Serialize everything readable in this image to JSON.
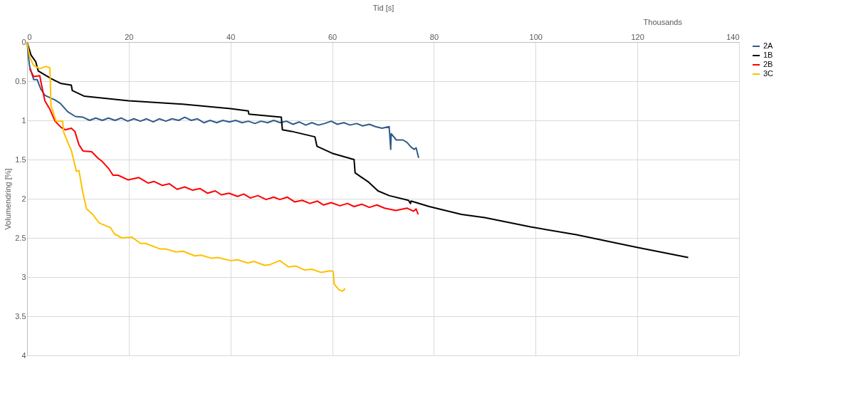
{
  "chart_data": {
    "type": "line",
    "xlabel": "Tid [s]",
    "ylabel": "Volumendring [%]",
    "annotations": [
      "Thousands"
    ],
    "xlim": [
      0,
      140
    ],
    "xticks": [
      0,
      20,
      40,
      60,
      80,
      100,
      120,
      140
    ],
    "ylim": [
      4,
      0
    ],
    "yticks": [
      0,
      0.5,
      1,
      1.5,
      2,
      2.5,
      3,
      3.5,
      4
    ],
    "grid": true,
    "legend": "right",
    "marker": "none",
    "line_style": "solid",
    "series": [
      {
        "name": "2A",
        "color": "#2f5b8a",
        "x": [
          0,
          0.3,
          0.5,
          1.3,
          2,
          2.7,
          3.5,
          5.5,
          6.5,
          8,
          9.5,
          11,
          12.3,
          13.5,
          14.8,
          16,
          17.3,
          18.5,
          19.8,
          21,
          22.3,
          23.5,
          24.8,
          26,
          27.3,
          28.5,
          29.8,
          31,
          32.3,
          33.5,
          34.8,
          36,
          37.3,
          38.5,
          39.8,
          41,
          42.3,
          43.5,
          44.8,
          46,
          47.3,
          48.5,
          49.8,
          51,
          52.3,
          53.5,
          54.8,
          56,
          57.3,
          58.5,
          59.8,
          61,
          62.3,
          63.5,
          64.8,
          66,
          67.3,
          68.5,
          69.8,
          71.2,
          71.5,
          71.6,
          72.6,
          73.9,
          74.7,
          75.5,
          76.1,
          76.5,
          77
        ],
        "values": [
          0,
          0.2,
          0.31,
          0.48,
          0.48,
          0.6,
          0.68,
          0.74,
          0.78,
          0.89,
          0.95,
          0.96,
          1.0,
          0.97,
          1.0,
          0.97,
          1.0,
          0.97,
          1.01,
          0.98,
          1.01,
          0.98,
          1.02,
          0.98,
          1.01,
          0.98,
          1.0,
          0.96,
          1.0,
          0.98,
          1.03,
          1.0,
          1.03,
          1.0,
          1.02,
          1.0,
          1.03,
          1.01,
          1.04,
          1.01,
          1.03,
          1.0,
          1.03,
          1.01,
          1.05,
          1.02,
          1.06,
          1.03,
          1.06,
          1.04,
          1.01,
          1.05,
          1.03,
          1.06,
          1.04,
          1.07,
          1.05,
          1.08,
          1.1,
          1.08,
          1.37,
          1.17,
          1.25,
          1.25,
          1.28,
          1.34,
          1.37,
          1.35,
          1.48
        ]
      },
      {
        "name": "1B",
        "color": "#000000",
        "x": [
          0,
          0.8,
          1.7,
          2.2,
          4.8,
          6.7,
          8.7,
          8.9,
          11.2,
          20,
          30,
          40,
          43.5,
          43.6,
          50,
          50.2,
          52,
          56.6,
          57,
          60,
          64.3,
          64.5,
          67.2,
          69,
          71.2,
          75,
          75.4,
          75.5,
          79.1,
          85.4,
          90,
          99,
          108,
          119.9,
          130
        ],
        "values": [
          0,
          0.17,
          0.25,
          0.37,
          0.47,
          0.53,
          0.55,
          0.62,
          0.69,
          0.75,
          0.79,
          0.85,
          0.88,
          0.92,
          0.96,
          1.12,
          1.14,
          1.21,
          1.33,
          1.42,
          1.5,
          1.67,
          1.79,
          1.9,
          1.96,
          2.02,
          2.06,
          2.03,
          2.1,
          2.2,
          2.24,
          2.36,
          2.46,
          2.62,
          2.75
        ]
      },
      {
        "name": "2B",
        "color": "#ff0000",
        "x": [
          0.5,
          1.3,
          2.5,
          2.7,
          3.5,
          4.5,
          5.5,
          6.7,
          7.5,
          8.7,
          9.4,
          10.2,
          11,
          12.7,
          13.9,
          14.7,
          16.1,
          16.9,
          17.9,
          19.9,
          22,
          23.8,
          25,
          26.6,
          28,
          29.5,
          31,
          32.5,
          34,
          35.5,
          37,
          38.2,
          39.7,
          41.4,
          42.6,
          43.9,
          45.4,
          47,
          48.5,
          49.7,
          51.2,
          52.6,
          54.1,
          55.6,
          57.1,
          58.3,
          59.8,
          61.5,
          63,
          64.3,
          65.8,
          67.3,
          68.8,
          70.3,
          72.5,
          74.7,
          76,
          76.5,
          76.9
        ],
        "values": [
          0.34,
          0.44,
          0.43,
          0.5,
          0.75,
          0.86,
          1.01,
          1.09,
          1.12,
          1.1,
          1.14,
          1.31,
          1.39,
          1.4,
          1.48,
          1.52,
          1.62,
          1.7,
          1.7,
          1.76,
          1.73,
          1.8,
          1.78,
          1.83,
          1.81,
          1.88,
          1.85,
          1.89,
          1.87,
          1.93,
          1.9,
          1.95,
          1.93,
          1.97,
          1.94,
          1.99,
          1.96,
          2.01,
          1.98,
          2.01,
          1.98,
          2.04,
          2.02,
          2.06,
          2.03,
          2.08,
          2.05,
          2.09,
          2.06,
          2.1,
          2.07,
          2.11,
          2.08,
          2.12,
          2.15,
          2.12,
          2.16,
          2.13,
          2.2
        ]
      },
      {
        "name": "3C",
        "color": "#ffc000",
        "x": [
          0,
          0.5,
          1.3,
          2.5,
          3.7,
          4.5,
          4.7,
          5.7,
          7,
          7.2,
          8.2,
          8.7,
          9.7,
          10.2,
          11,
          11.7,
          12.9,
          14.2,
          16.4,
          17.2,
          18.6,
          20.6,
          22.3,
          23.3,
          26.1,
          27.2,
          29.3,
          30.7,
          33,
          34.2,
          36.3,
          37.5,
          40,
          41.4,
          43.4,
          44.6,
          46.7,
          47.8,
          49.7,
          51.4,
          52.9,
          54.6,
          56,
          57.8,
          59.6,
          60.2,
          60.4,
          61.3,
          62,
          62.4,
          62.4
        ],
        "values": [
          0,
          0.19,
          0.3,
          0.34,
          0.31,
          0.33,
          0.81,
          1.01,
          1.01,
          1.15,
          1.31,
          1.38,
          1.65,
          1.64,
          1.93,
          2.13,
          2.2,
          2.31,
          2.37,
          2.45,
          2.5,
          2.49,
          2.57,
          2.57,
          2.64,
          2.64,
          2.68,
          2.67,
          2.73,
          2.72,
          2.76,
          2.75,
          2.79,
          2.78,
          2.82,
          2.8,
          2.85,
          2.84,
          2.79,
          2.87,
          2.86,
          2.91,
          2.9,
          2.94,
          2.92,
          2.93,
          3.09,
          3.16,
          3.18,
          3.16,
          3.14
        ]
      }
    ]
  }
}
